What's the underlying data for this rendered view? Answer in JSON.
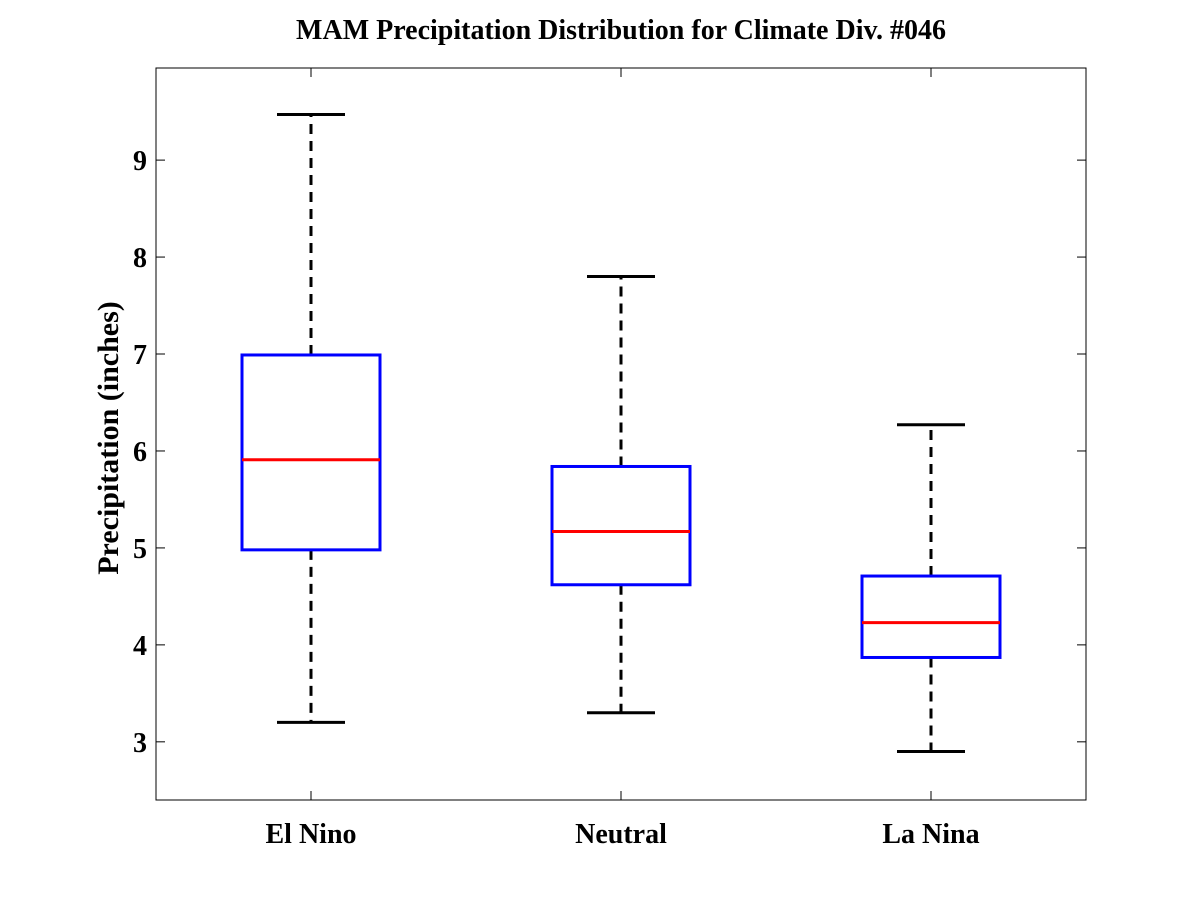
{
  "chart_data": {
    "type": "boxplot",
    "title": "MAM Precipitation Distribution for Climate Div. #046",
    "xlabel": "",
    "ylabel": "Precipitation (inches)",
    "ylim": [
      2.4,
      9.95
    ],
    "yticks": [
      3,
      4,
      5,
      6,
      7,
      8,
      9
    ],
    "categories": [
      "El Nino",
      "Neutral",
      "La Nina"
    ],
    "boxes": [
      {
        "category": "El Nino",
        "whisker_low": 3.2,
        "q1": 4.98,
        "median": 5.91,
        "q3": 6.99,
        "whisker_high": 9.47
      },
      {
        "category": "Neutral",
        "whisker_low": 3.3,
        "q1": 4.62,
        "median": 5.17,
        "q3": 5.84,
        "whisker_high": 7.8
      },
      {
        "category": "La Nina",
        "whisker_low": 2.9,
        "q1": 3.87,
        "median": 4.23,
        "q3": 4.71,
        "whisker_high": 6.27
      }
    ],
    "grid": false,
    "colors": {
      "box": "#0000ff",
      "median": "#ff0000",
      "whisker": "#000000"
    }
  }
}
